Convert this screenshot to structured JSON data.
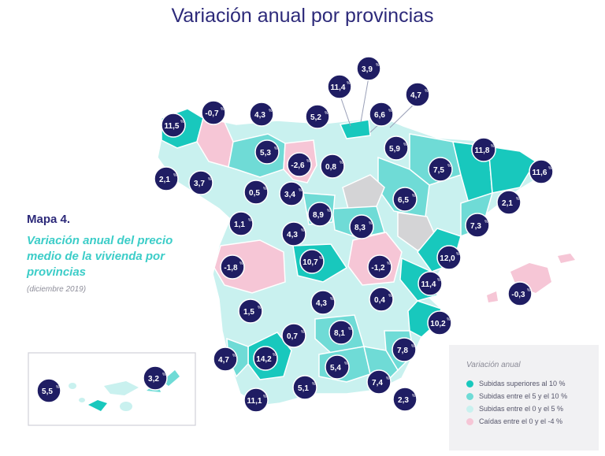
{
  "title": "Variación anual por provincias",
  "caption": {
    "number": "Mapa 4.",
    "title": "Variación anual del precio medio de la vivienda por provincias",
    "date": "(diciembre 2019)"
  },
  "legend": {
    "title": "Variación anual",
    "items": [
      {
        "label": "Subidas superiores al 10 %",
        "color": "#18c8bd"
      },
      {
        "label": "Subidas entre el 5  y el 10 %",
        "color": "#6fdbd6"
      },
      {
        "label": "Subidas entre el 0 y el 5 %",
        "color": "#c9f1ef"
      },
      {
        "label": "Caídas entre el 0 y el -4 %",
        "color": "#f6c6d6"
      }
    ]
  },
  "colors": {
    "title": "#2d2a7a",
    "bubble": "#1f1d63",
    "accent": "#3ccdc8",
    "no_data": "#d4d4d6"
  },
  "provinces": [
    {
      "name": "A Coruña",
      "value": "11,5"
    },
    {
      "name": "Lugo",
      "value": "-0,7"
    },
    {
      "name": "Asturias",
      "value": "4,3"
    },
    {
      "name": "Cantabria",
      "value": "5,2"
    },
    {
      "name": "Bizkaia",
      "value": "11,4"
    },
    {
      "name": "Gipuzkoa",
      "value": "3,9"
    },
    {
      "name": "Araba",
      "value": "6,6"
    },
    {
      "name": "Navarra",
      "value": "4,7"
    },
    {
      "name": "Pontevedra",
      "value": "2,1"
    },
    {
      "name": "Ourense",
      "value": "3,7"
    },
    {
      "name": "León",
      "value": "5,3"
    },
    {
      "name": "Palencia",
      "value": "-2,6"
    },
    {
      "name": "Burgos",
      "value": "0,8"
    },
    {
      "name": "La Rioja",
      "value": "5,9"
    },
    {
      "name": "Huesca",
      "value": "7,5"
    },
    {
      "name": "Lleida",
      "value": "11,8"
    },
    {
      "name": "Girona",
      "value": "11,6"
    },
    {
      "name": "Zamora",
      "value": "0,5"
    },
    {
      "name": "Valladolid",
      "value": "3,4"
    },
    {
      "name": "Zaragoza",
      "value": "6,5"
    },
    {
      "name": "Barcelona",
      "value": "2,1"
    },
    {
      "name": "Tarragona",
      "value": "7,3"
    },
    {
      "name": "Salamanca",
      "value": "1,1"
    },
    {
      "name": "Segovia",
      "value": "8,9"
    },
    {
      "name": "Ávila",
      "value": "4,3"
    },
    {
      "name": "Guadalajara",
      "value": "8,3"
    },
    {
      "name": "Cáceres",
      "value": "-1,8"
    },
    {
      "name": "Madrid",
      "value": "10,7"
    },
    {
      "name": "Cuenca",
      "value": "-1,2"
    },
    {
      "name": "Castellón",
      "value": "12,0"
    },
    {
      "name": "Valencia",
      "value": "11,4"
    },
    {
      "name": "Illes Balears",
      "value": "-0,3"
    },
    {
      "name": "Badajoz",
      "value": "1,5"
    },
    {
      "name": "Ciudad Real",
      "value": "4,3"
    },
    {
      "name": "Albacete",
      "value": "0,4"
    },
    {
      "name": "Alicante",
      "value": "10,2"
    },
    {
      "name": "Córdoba",
      "value": "0,7"
    },
    {
      "name": "Jaén",
      "value": "8,1"
    },
    {
      "name": "Murcia",
      "value": "7,8"
    },
    {
      "name": "Huelva",
      "value": "4,7"
    },
    {
      "name": "Sevilla",
      "value": "14,2"
    },
    {
      "name": "Granada",
      "value": "5,4"
    },
    {
      "name": "Almería",
      "value": "7,4"
    },
    {
      "name": "Cádiz",
      "value": "11,1"
    },
    {
      "name": "Málaga",
      "value": "5,1"
    },
    {
      "name": "Melilla",
      "value": "2,3"
    },
    {
      "name": "Las Palmas",
      "value": "5,5"
    },
    {
      "name": "Santa Cruz de Tenerife",
      "value": "3,2"
    }
  ]
}
